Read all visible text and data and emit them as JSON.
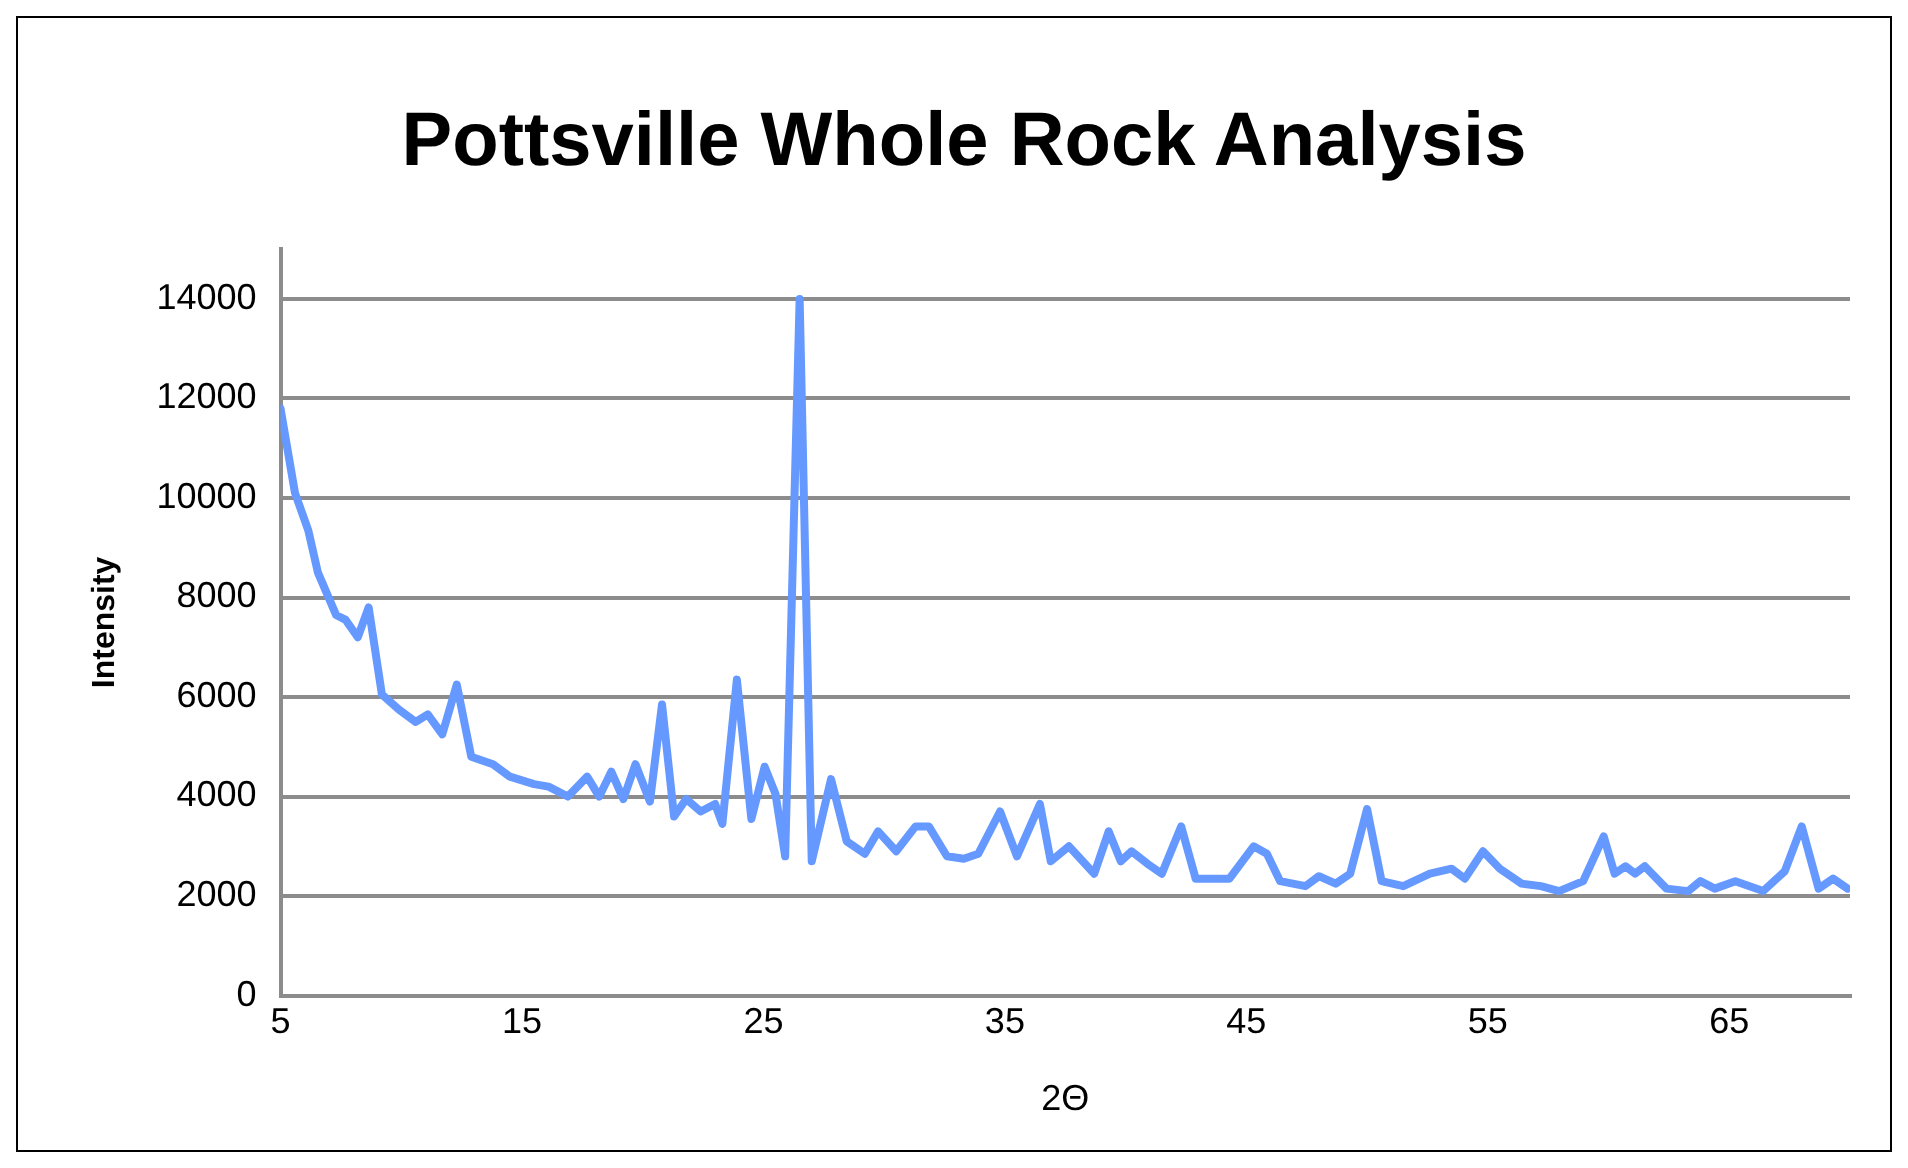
{
  "chart_data": {
    "type": "line",
    "title": "Pottsville Whole Rock Analysis",
    "xlabel": "2Θ",
    "ylabel": "Intensity",
    "x": [
      5,
      5.6,
      6.15,
      6.55,
      7.3,
      7.7,
      8.2,
      8.65,
      9.2,
      9.9,
      10.6,
      11.1,
      11.7,
      12.3,
      12.9,
      13.8,
      14.5,
      15.5,
      16.1,
      16.9,
      17.7,
      18.2,
      18.7,
      19.2,
      19.7,
      20.3,
      20.8,
      21.3,
      21.8,
      22.4,
      23,
      23.3,
      23.9,
      24.5,
      25.05,
      25.5,
      25.9,
      26.5,
      27,
      27.8,
      28.45,
      29.2,
      29.75,
      30.5,
      31.3,
      31.85,
      32.6,
      33.3,
      33.9,
      34.8,
      35.5,
      36.45,
      36.9,
      37.65,
      38.7,
      39.3,
      39.8,
      40.25,
      40.9,
      41.5,
      42.3,
      42.9,
      44.3,
      45.3,
      45.85,
      46.4,
      47.45,
      48,
      48.7,
      49.3,
      50,
      50.6,
      51.5,
      52.6,
      53.5,
      54.05,
      54.8,
      55.5,
      56.4,
      57.2,
      57.95,
      58.95,
      59.8,
      60.25,
      60.7,
      61.1,
      61.5,
      62.4,
      63.3,
      63.8,
      64.4,
      65.25,
      66.4,
      67.3,
      68,
      68.7,
      69.3,
      69.9
    ],
    "values": [
      11800,
      10100,
      9350,
      8500,
      7650,
      7550,
      7200,
      7800,
      6050,
      5750,
      5500,
      5650,
      5250,
      6250,
      4800,
      4650,
      4400,
      4250,
      4200,
      4000,
      4400,
      4000,
      4500,
      3950,
      4650,
      3900,
      5850,
      3600,
      3950,
      3700,
      3850,
      3450,
      6350,
      3550,
      4600,
      4050,
      2800,
      14000,
      2700,
      4350,
      3100,
      2850,
      3300,
      2900,
      3400,
      3400,
      2800,
      2750,
      2850,
      3700,
      2800,
      3850,
      2700,
      3000,
      2450,
      3300,
      2700,
      2900,
      2650,
      2450,
      3400,
      2350,
      2350,
      3000,
      2850,
      2300,
      2200,
      2400,
      2250,
      2450,
      3750,
      2300,
      2200,
      2450,
      2550,
      2350,
      2900,
      2550,
      2250,
      2200,
      2100,
      2300,
      3200,
      2450,
      2600,
      2450,
      2600,
      2150,
      2100,
      2300,
      2150,
      2300,
      2100,
      2500,
      3400,
      2150,
      2350,
      2150
    ],
    "color": "#6699ff",
    "marker": "none",
    "line_style": "solid",
    "xlim": [
      5,
      70
    ],
    "xticks": [
      5,
      15,
      25,
      35,
      45,
      55,
      65
    ],
    "ylim": [
      0,
      15000
    ],
    "yticks": [
      0,
      2000,
      4000,
      6000,
      8000,
      10000,
      12000,
      14000
    ],
    "grid": "y"
  }
}
